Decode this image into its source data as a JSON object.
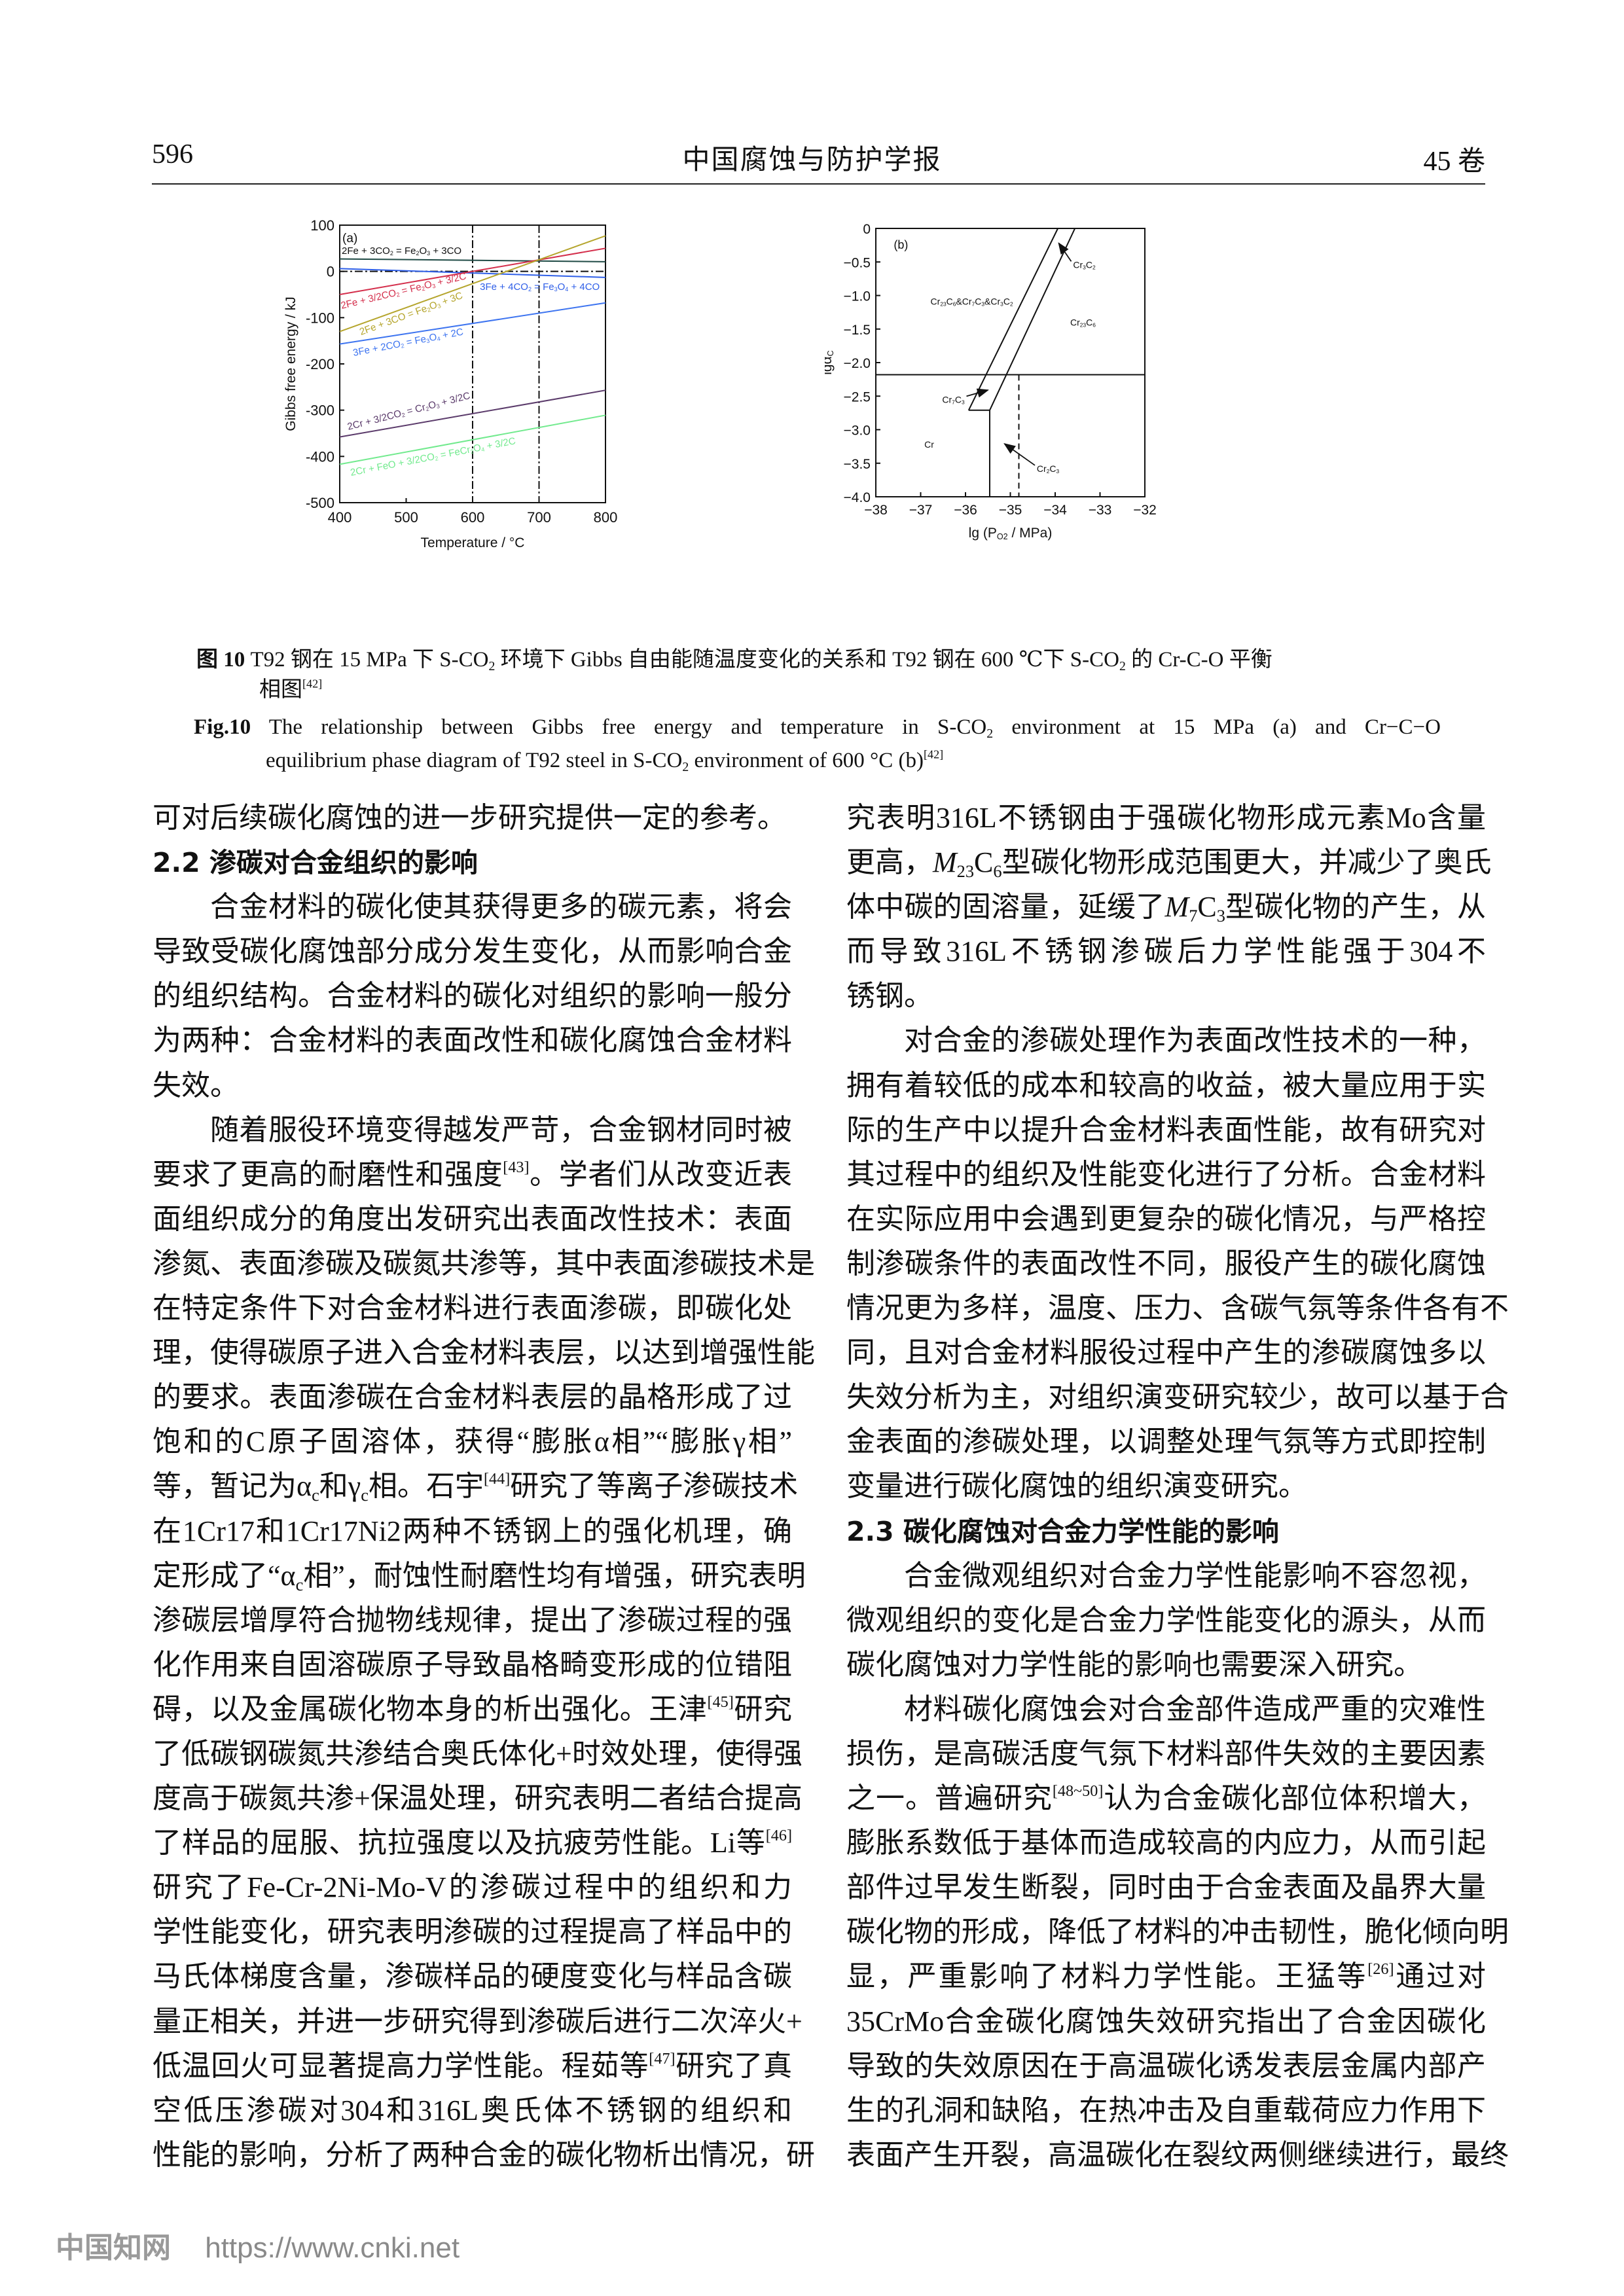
{
  "header": {
    "page_number": "596",
    "journal": "中国腐蚀与防护学报",
    "volume": "45 卷"
  },
  "figure": {
    "caption_cn_label": "图 10",
    "caption_cn_line1": "T92 钢在 15 MPa 下 S-CO_{2} 环境下 Gibbs 自由能随温度变化的关系和 T92 钢在 600 ℃下 S-CO_{2} 的 Cr-C-O 平衡",
    "caption_cn_line2": "相图^{[42]}",
    "caption_en_label": "Fig.10",
    "caption_en_line1": "The relationship between Gibbs free energy and temperature in S-CO_{2} environment at 15 MPa (a) and Cr−C−O",
    "caption_en_line2": "equilibrium phase diagram of T92 steel in S-CO_{2} environment of 600 °C (b)^{[42]}"
  },
  "chart_data": [
    {
      "type": "line",
      "panel_label": "(a)",
      "xlabel": "Temperature / °C",
      "ylabel": "Gibbs free energy / kJ",
      "xlim": [
        400,
        800
      ],
      "ylim": [
        -500,
        100
      ],
      "xticks": [
        400,
        500,
        600,
        700,
        800
      ],
      "yticks": [
        100,
        0,
        -100,
        -200,
        -300,
        -400,
        -500
      ],
      "reference_lines": {
        "horizontal_y": 0,
        "vertical_x": [
          600,
          700
        ],
        "style": "dash-dot"
      },
      "series": [
        {
          "name": "2Fe + 3CO_{2} = Fe_{2}O_{3} + 3CO",
          "x": [
            400,
            800
          ],
          "y": [
            27,
            21
          ],
          "color": "#1f4a45"
        },
        {
          "name": "3Fe + 4CO_{2} = Fe_{3}O_{4} + 4CO",
          "x": [
            400,
            800
          ],
          "y": [
            6,
            -13
          ],
          "color": "#2f5fe8"
        },
        {
          "name": "2Fe + 3/2CO_{2} = Fe_{2}O_{3} + 3/2C",
          "x": [
            400,
            800
          ],
          "y": [
            -50,
            50
          ],
          "color": "#d42f4c"
        },
        {
          "name": "2Fe + 3CO = Fe_{2}O_{3} + 3C",
          "x": [
            400,
            800
          ],
          "y": [
            -130,
            77
          ],
          "color": "#b5a52c"
        },
        {
          "name": "3Fe + 2CO_{2} = Fe_{3}O_{4} + 2C",
          "x": [
            400,
            800
          ],
          "y": [
            -157,
            -68
          ],
          "color": "#3d74f0"
        },
        {
          "name": "2Cr + 3/2CO_{2} = Cr_{2}O_{3} + 3/2C",
          "x": [
            400,
            800
          ],
          "y": [
            -358,
            -257
          ],
          "color": "#5b3b6b"
        },
        {
          "name": "2Cr + FeO + 3/2CO_{2} = FeCr_{2}O_{4} + 3/2C",
          "x": [
            400,
            800
          ],
          "y": [
            -417,
            -311
          ],
          "color": "#72ea8e"
        }
      ]
    },
    {
      "type": "phase-diagram",
      "panel_label": "(b)",
      "xlabel": "lg (P_{O2} / MPa)",
      "ylabel": "lgα_{C}",
      "xlim": [
        -38,
        -32
      ],
      "ylim": [
        -4.0,
        0
      ],
      "xticks": [
        -38,
        -37,
        -36,
        -35,
        -34,
        -33,
        -32
      ],
      "yticks": [
        "0",
        "−0.5",
        "−1.0",
        "−1.5",
        "−2.0",
        "−2.5",
        "−3.0",
        "−3.5",
        "−4.0"
      ],
      "xtick_labels": [
        "−38",
        "−37",
        "−36",
        "−35",
        "−34",
        "−33",
        "−32"
      ],
      "boundaries": [
        {
          "x": [
            -38,
            -32
          ],
          "y": [
            -2.18,
            -2.18
          ],
          "style": "solid"
        },
        {
          "x": [
            -33.94,
            -35.93
          ],
          "y": [
            0,
            -2.71
          ],
          "style": "solid"
        },
        {
          "x": [
            -33.56,
            -35.46
          ],
          "y": [
            0,
            -2.71
          ],
          "style": "solid"
        },
        {
          "x": [
            -35.93,
            -35.46
          ],
          "y": [
            -2.71,
            -2.71
          ],
          "style": "solid"
        },
        {
          "x": [
            -35.46,
            -35.46
          ],
          "y": [
            -2.71,
            -4.0
          ],
          "style": "solid"
        },
        {
          "x": [
            -34.81,
            -34.81
          ],
          "y": [
            -2.18,
            -4.0
          ],
          "style": "dashed"
        }
      ],
      "regions": [
        {
          "label": "Cr_{23}C_{6}&Cr_{7}C_{3}&Cr_{3}C_{2}",
          "x": -35.86,
          "y": -1.08
        },
        {
          "label": "Cr_{23}C_{6}",
          "x": -33.38,
          "y": -1.39
        },
        {
          "label": "Cr",
          "x": -36.81,
          "y": -3.21
        },
        {
          "label": "Cr_{3}C_{2}",
          "x": -33.35,
          "y": -0.53,
          "arrow_to": [
            -33.92,
            -0.22
          ]
        },
        {
          "label": "Cr_{7}C_{3}",
          "x": -36.27,
          "y": -2.54,
          "arrow_to": [
            -35.5,
            -2.41
          ]
        },
        {
          "label": "Cr_{2}C_{3}",
          "x": -34.16,
          "y": -3.57,
          "arrow_to": [
            -35.13,
            -3.21
          ]
        }
      ]
    }
  ],
  "left_column": {
    "paragraphs": [
      {
        "type": "p",
        "continued": true,
        "lines": [
          "可对后续碳化腐蚀的进一步研究提供一定的参考。"
        ]
      },
      {
        "type": "heading",
        "lines": [
          "2.2  渗碳对合金组织的影响"
        ]
      },
      {
        "type": "p",
        "lines": [
          "合金材料的碳化使其获得更多的碳元素，将会",
          "导致受碳化腐蚀部分成分发生变化，从而影响合金",
          "的组织结构。合金材料的碳化对组织的影响一般分",
          "为两种：合金材料的表面改性和碳化腐蚀合金材料",
          "失效。"
        ]
      },
      {
        "type": "p",
        "open": true,
        "lines": [
          "随着服役环境变得越发严苛，合金钢材同时被",
          "要求了更高的耐磨性和强度^{[43]}。学者们从改变近表",
          "面组织成分的角度出发研究出表面改性技术：表面",
          "渗氮、表面渗碳及碳氮共渗等，其中表面渗碳技术是",
          "在特定条件下对合金材料进行表面渗碳，即碳化处",
          "理，使得碳原子进入合金材料表层，以达到增强性能",
          "的要求。表面渗碳在合金材料表层的晶格形成了过",
          "饱和的C原子固溶体，获得“膨胀α相”“膨胀γ相”",
          "等，暂记为α_{c}和γ_{c}相。石宇^{[44]}研究了等离子渗碳技术",
          "在1Cr17和1Cr17Ni2两种不锈钢上的强化机理，确",
          "定形成了“α_{c}相”，耐蚀性耐磨性均有增强，研究表明",
          "渗碳层增厚符合抛物线规律，提出了渗碳过程的强",
          "化作用来自固溶碳原子导致晶格畸变形成的位错阻",
          "碍，以及金属碳化物本身的析出强化。王津^{[45]}研究",
          "了低碳钢碳氮共渗结合奥氏体化+时效处理，使得强",
          "度高于碳氮共渗+保温处理，研究表明二者结合提高",
          "了样品的屈服、抗拉强度以及抗疲劳性能。Li等^{[46]}",
          "研究了Fe-Cr-2Ni-Mo-V的渗碳过程中的组织和力",
          "学性能变化，研究表明渗碳的过程提高了样品中的",
          "马氏体梯度含量，渗碳样品的硬度变化与样品含碳",
          "量正相关，并进一步研究得到渗碳后进行二次淬火+",
          "低温回火可显著提高力学性能。程茹等^{[47]}研究了真",
          "空低压渗碳对304和316L奥氏体不锈钢的组织和",
          "性能的影响，分析了两种合金的碳化物析出情况，研"
        ]
      }
    ]
  },
  "right_column": {
    "paragraphs": [
      {
        "type": "p",
        "continued": true,
        "lines": [
          "究表明316L不锈钢由于强碳化物形成元素Mo含量",
          "更高，*M*_{23}C_{6}型碳化物形成范围更大，并减少了奥氏",
          "体中碳的固溶量，延缓了*M*_{7}C_{3}型碳化物的产生，从",
          "而导致316L不锈钢渗碳后力学性能强于304不",
          "锈钢。"
        ]
      },
      {
        "type": "p",
        "lines": [
          "对合金的渗碳处理作为表面改性技术的一种，",
          "拥有着较低的成本和较高的收益，被大量应用于实",
          "际的生产中以提升合金材料表面性能，故有研究对",
          "其过程中的组织及性能变化进行了分析。合金材料",
          "在实际应用中会遇到更复杂的碳化情况，与严格控",
          "制渗碳条件的表面改性不同，服役产生的碳化腐蚀",
          "情况更为多样，温度、压力、含碳气氛等条件各有不",
          "同，且对合金材料服役过程中产生的渗碳腐蚀多以",
          "失效分析为主，对组织演变研究较少，故可以基于合",
          "金表面的渗碳处理，以调整处理气氛等方式即控制",
          "变量进行碳化腐蚀的组织演变研究。"
        ]
      },
      {
        "type": "heading",
        "lines": [
          "2.3  碳化腐蚀对合金力学性能的影响"
        ]
      },
      {
        "type": "p",
        "lines": [
          "合金微观组织对合金力学性能影响不容忽视，",
          "微观组织的变化是合金力学性能变化的源头，从而",
          "碳化腐蚀对力学性能的影响也需要深入研究。"
        ]
      },
      {
        "type": "p",
        "open": true,
        "lines": [
          "材料碳化腐蚀会对合金部件造成严重的灾难性",
          "损伤，是高碳活度气氛下材料部件失效的主要因素",
          "之一。普遍研究^{[48~50]}认为合金碳化部位体积增大，",
          "膨胀系数低于基体而造成较高的内应力，从而引起",
          "部件过早发生断裂，同时由于合金表面及晶界大量",
          "碳化物的形成，降低了材料的冲击韧性，脆化倾向明",
          "显，严重影响了材料力学性能。王猛等^{[26]}通过对",
          "35CrMo合金碳化腐蚀失效研究指出了合金因碳化",
          "导致的失效原因在于高温碳化诱发表层金属内部产",
          "生的孔洞和缺陷，在热冲击及自重载荷应力作用下",
          "表面产生开裂，高温碳化在裂纹两侧继续进行，最终"
        ]
      }
    ]
  },
  "footer": {
    "watermark_logo": "中国知网",
    "url": "https://www.cnki.net"
  }
}
